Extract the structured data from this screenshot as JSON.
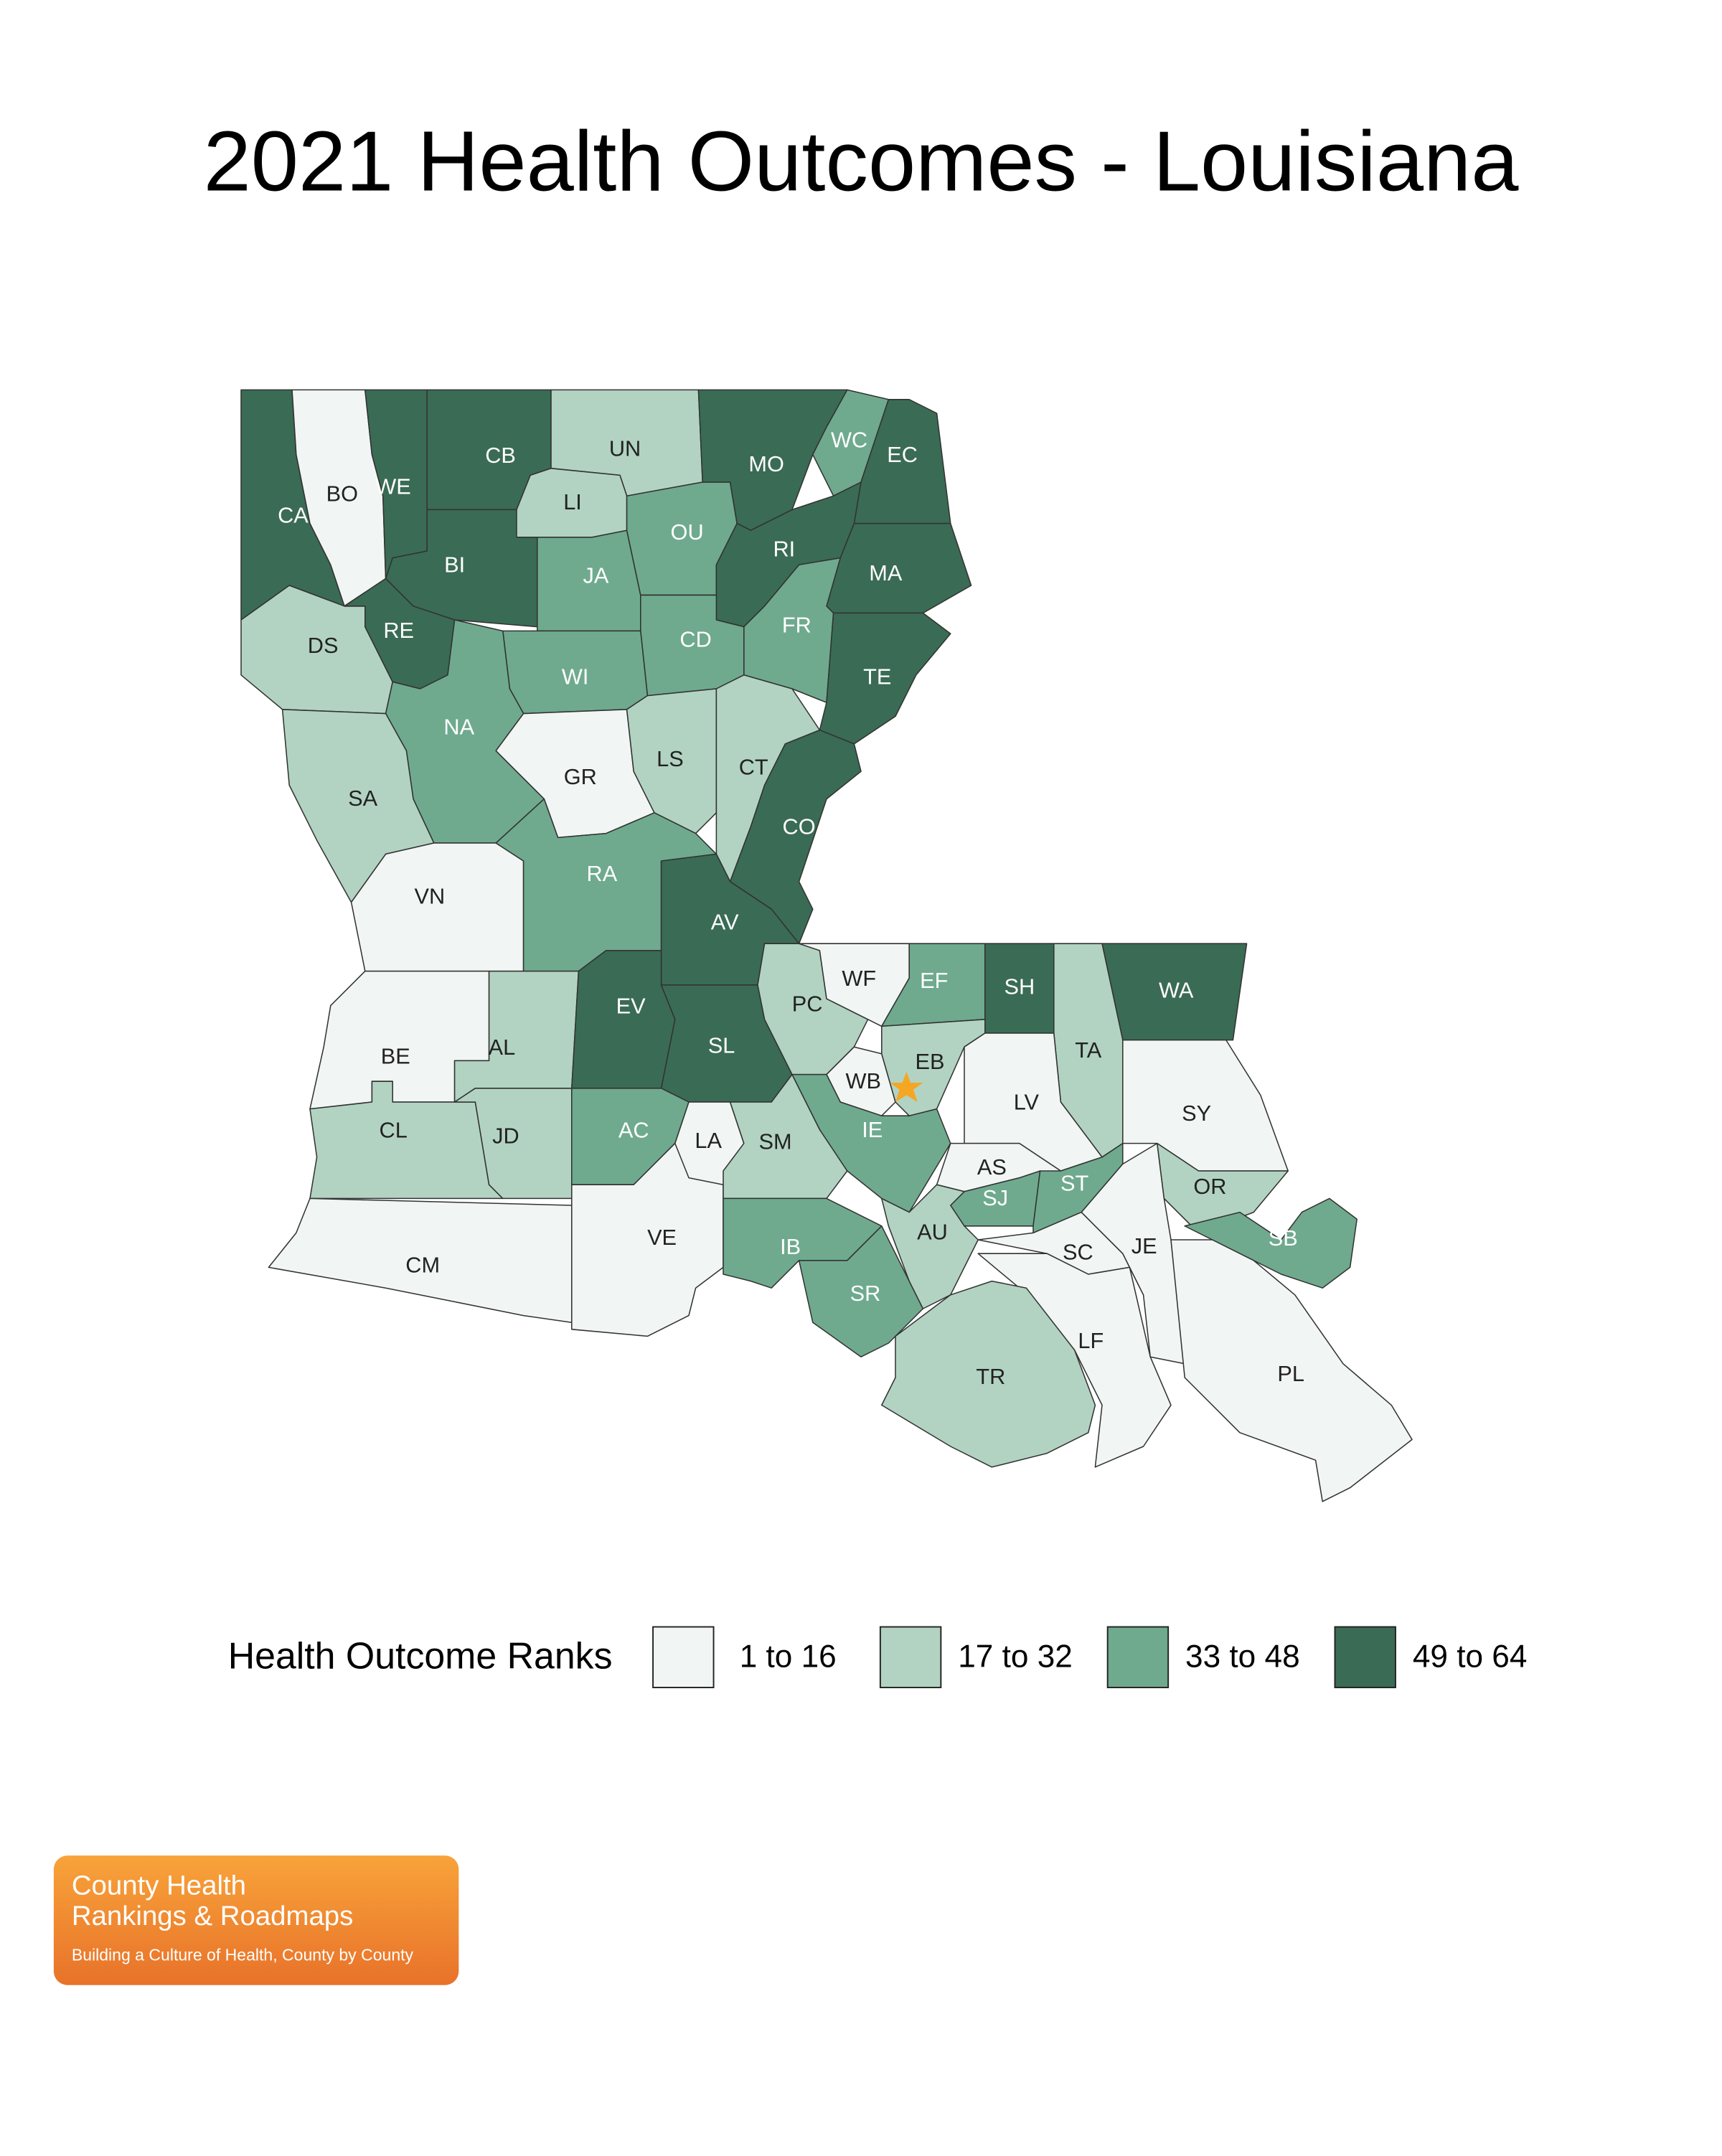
{
  "title": "2021 Health Outcomes - Louisiana",
  "legend": {
    "title": "Health Outcome Ranks",
    "items": [
      {
        "label": "1 to 16",
        "color": "#f1f5f3"
      },
      {
        "label": "17 to 32",
        "color": "#b2d3c2"
      },
      {
        "label": "33 to 48",
        "color": "#6faa8e"
      },
      {
        "label": "49 to 64",
        "color": "#3a6b55"
      }
    ]
  },
  "parishes": [
    {
      "label": "CA",
      "color": "#3a6b55"
    },
    {
      "label": "BO",
      "color": "#f1f5f3"
    },
    {
      "label": "WE",
      "color": "#3a6b55"
    },
    {
      "label": "CB",
      "color": "#3a6b55"
    },
    {
      "label": "BI",
      "color": "#3a6b55"
    },
    {
      "label": "UN",
      "color": "#b2d3c2"
    },
    {
      "label": "LI",
      "color": "#b2d3c2"
    },
    {
      "label": "JA",
      "color": "#6faa8e"
    },
    {
      "label": "OU",
      "color": "#6faa8e"
    },
    {
      "label": "MO",
      "color": "#3a6b55"
    },
    {
      "label": "WC",
      "color": "#6faa8e"
    },
    {
      "label": "EC",
      "color": "#3a6b55"
    },
    {
      "label": "RI",
      "color": "#3a6b55"
    },
    {
      "label": "MA",
      "color": "#3a6b55"
    },
    {
      "label": "FR",
      "color": "#6faa8e"
    },
    {
      "label": "CD",
      "color": "#6faa8e"
    },
    {
      "label": "TE",
      "color": "#3a6b55"
    },
    {
      "label": "DS",
      "color": "#b2d3c2"
    },
    {
      "label": "RE",
      "color": "#3a6b55"
    },
    {
      "label": "WI",
      "color": "#6faa8e"
    },
    {
      "label": "NA",
      "color": "#6faa8e"
    },
    {
      "label": "SA",
      "color": "#b2d3c2"
    },
    {
      "label": "GR",
      "color": "#f1f5f3"
    },
    {
      "label": "LS",
      "color": "#b2d3c2"
    },
    {
      "label": "CT",
      "color": "#b2d3c2"
    },
    {
      "label": "CO",
      "color": "#3a6b55"
    },
    {
      "label": "VN",
      "color": "#f1f5f3"
    },
    {
      "label": "RA",
      "color": "#6faa8e"
    },
    {
      "label": "AV",
      "color": "#3a6b55"
    },
    {
      "label": "BE",
      "color": "#f1f5f3"
    },
    {
      "label": "AL",
      "color": "#b2d3c2"
    },
    {
      "label": "EV",
      "color": "#3a6b55"
    },
    {
      "label": "SL",
      "color": "#3a6b55"
    },
    {
      "label": "CL",
      "color": "#b2d3c2"
    },
    {
      "label": "JD",
      "color": "#b2d3c2"
    },
    {
      "label": "AC",
      "color": "#6faa8e"
    },
    {
      "label": "CM",
      "color": "#f1f5f3"
    },
    {
      "label": "VE",
      "color": "#f1f5f3"
    },
    {
      "label": "LA",
      "color": "#f1f5f3"
    },
    {
      "label": "SM",
      "color": "#b2d3c2"
    },
    {
      "label": "IB",
      "color": "#6faa8e"
    },
    {
      "label": "SR",
      "color": "#6faa8e"
    },
    {
      "label": "PC",
      "color": "#b2d3c2"
    },
    {
      "label": "WF",
      "color": "#f1f5f3"
    },
    {
      "label": "WB",
      "color": "#f1f5f3"
    },
    {
      "label": "EF",
      "color": "#6faa8e"
    },
    {
      "label": "SH",
      "color": "#3a6b55"
    },
    {
      "label": "WA",
      "color": "#3a6b55"
    },
    {
      "label": "TA",
      "color": "#b2d3c2"
    },
    {
      "label": "EB",
      "color": "#b2d3c2"
    },
    {
      "label": "LV",
      "color": "#f1f5f3"
    },
    {
      "label": "SY",
      "color": "#f1f5f3"
    },
    {
      "label": "IE",
      "color": "#6faa8e"
    },
    {
      "label": "AS",
      "color": "#f1f5f3"
    },
    {
      "label": "SJ",
      "color": "#6faa8e"
    },
    {
      "label": "ST",
      "color": "#6faa8e"
    },
    {
      "label": "AU",
      "color": "#b2d3c2"
    },
    {
      "label": "SC",
      "color": "#f1f5f3"
    },
    {
      "label": "JE",
      "color": "#f1f5f3"
    },
    {
      "label": "OR",
      "color": "#b2d3c2"
    },
    {
      "label": "SB",
      "color": "#6faa8e"
    },
    {
      "label": "PL",
      "color": "#f1f5f3"
    },
    {
      "label": "LF",
      "color": "#f1f5f3"
    },
    {
      "label": "TR",
      "color": "#b2d3c2"
    }
  ],
  "logo": {
    "line1": "County Health",
    "line2": "Rankings & Roadmaps",
    "tagline": "Building a Culture of Health, County by County"
  }
}
